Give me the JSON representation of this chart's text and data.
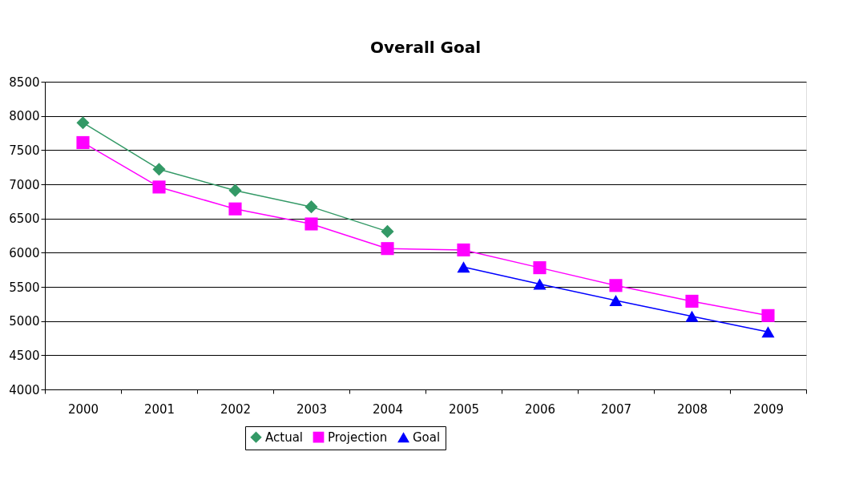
{
  "chart_data": {
    "type": "line",
    "title": "Overall Goal",
    "categories": [
      "2000",
      "2001",
      "2002",
      "2003",
      "2004",
      "2005",
      "2006",
      "2007",
      "2008",
      "2009"
    ],
    "series": [
      {
        "name": "Actual",
        "color": "#339966",
        "marker": "diamond",
        "values": [
          7900,
          7220,
          6910,
          6670,
          6310,
          null,
          null,
          null,
          null,
          null
        ]
      },
      {
        "name": "Projection",
        "color": "#ff00ff",
        "marker": "square",
        "values": [
          7610,
          6960,
          6640,
          6420,
          6060,
          6040,
          5780,
          5520,
          5290,
          5080
        ]
      },
      {
        "name": "Goal",
        "color": "#0000ff",
        "marker": "triangle",
        "values": [
          null,
          null,
          null,
          null,
          null,
          5790,
          5540,
          5300,
          5070,
          4840
        ]
      }
    ],
    "ylim": [
      4000,
      8500
    ],
    "yticks": [
      4000,
      4500,
      5000,
      5500,
      6000,
      6500,
      7000,
      7500,
      8000,
      8500
    ],
    "grid": "y",
    "legend": "bottom",
    "line_style": "solid"
  }
}
